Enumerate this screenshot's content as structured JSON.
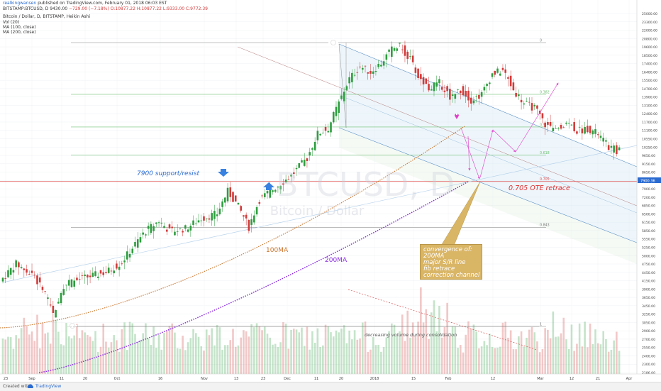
{
  "header": {
    "author": "realkingwansen",
    "published": "published on TradingView.com, February 01, 2018 06:03 EST",
    "symbol_line": "BITSTAMP:BTCUSD, D",
    "last_price": "9430.00",
    "change": "−729.00 (−7.18%)",
    "ohlc": "O:10877.22 H:10877.22 L:9333.00 C:9772.39",
    "pair_name": "Bitcoin / Dollar, D, BITSTAMP, Heikin Ashi",
    "indicators": [
      "Vol (20)",
      "MA (100, close)",
      "MA (200, close)"
    ]
  },
  "watermark": {
    "symbol": "BTCUSD, D",
    "name": "Bitcoin / Dollar"
  },
  "annotations": {
    "support": "7900 support/resist",
    "ote": "0.705 OTE retrace",
    "ma100": "100MA",
    "ma200": "200MA",
    "volume_note": "decreasing volume during consolidation",
    "convergence": [
      "convergence of:",
      "200MA",
      "major S/R line",
      "fib retrace",
      "correction channel"
    ]
  },
  "footer": {
    "created_with": "Created with",
    "brand": "TradingView"
  },
  "colors": {
    "bull": "#2e9d3f",
    "bear": "#d23a3a",
    "ma100": "#c9742a",
    "ma200": "#8a2be2",
    "support_line": "#e05050",
    "fib": "#6fbf73",
    "channel": "#5a8fc6",
    "arrow": "#e055d0",
    "annot_blue": "#2a6bd1"
  },
  "chart_data": {
    "type": "candlestick",
    "y_axis_labels": [
      "25000.00",
      "23300.00",
      "22000.00",
      "20800.00",
      "19600.00",
      "18500.00",
      "17400.00",
      "16400.00",
      "15500.00",
      "14700.00",
      "13900.00",
      "13100.00",
      "12400.00",
      "11700.00",
      "11100.00",
      "10550.00",
      "10250.00",
      "9650.00",
      "9150.00",
      "8650.00",
      "8150.00",
      "7900.00",
      "7200.00",
      "6850.00",
      "6500.00",
      "6150.00",
      "5850.00",
      "5550.00",
      "5250.00",
      "5000.00",
      "4750.00",
      "4450.00",
      "4150.00",
      "3900.00",
      "3650.00",
      "3450.00",
      "3250.00",
      "3050.00",
      "2900.00",
      "2700.00",
      "2550.00",
      "2400.00",
      "2300.00",
      "2186.00"
    ],
    "current_price_label": "7900.36",
    "x_axis_labels": [
      "23",
      "Sep",
      "11",
      "20",
      "Oct",
      "16",
      "Nov",
      "13",
      "23",
      "Dec",
      "11",
      "20",
      "2018",
      "15",
      "Feb",
      "12",
      "Mar",
      "12",
      "21",
      "Apr"
    ],
    "fib_levels": [
      {
        "label": "0",
        "price": 19666
      },
      {
        "label": "0.382",
        "price": 14000
      },
      {
        "label": "0.5",
        "price": 11300
      },
      {
        "label": "0.618",
        "price": 9400
      },
      {
        "label": "0.705",
        "price": 7900
      },
      {
        "label": "0.843",
        "price": 5850
      },
      {
        "label": "1",
        "price": 3050
      }
    ],
    "support_resist_level": 7900,
    "series": [
      {
        "name": "MA (100, close)",
        "start": [
          2900,
          "Aug 23"
        ],
        "end": [
          11500,
          "Jan 31"
        ]
      },
      {
        "name": "MA (200, close)",
        "start": [
          2186,
          "Sep 05"
        ],
        "end": [
          7900,
          "Feb 06"
        ]
      }
    ],
    "volume_trend_start": {
      "date": "Dec 21",
      "value": "peak"
    },
    "volume_trend_end": {
      "date": "Mar 21",
      "value": "low"
    }
  }
}
